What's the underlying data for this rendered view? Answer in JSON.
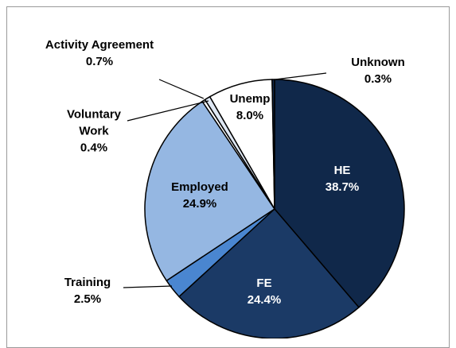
{
  "chart_data": {
    "type": "pie",
    "categories": [
      "HE",
      "FE",
      "Training",
      "Employed",
      "Voluntary Work",
      "Activity Agreement",
      "Unemp",
      "Unknown"
    ],
    "values": [
      38.7,
      24.4,
      2.5,
      24.9,
      0.4,
      0.7,
      8.0,
      0.3
    ],
    "value_labels": [
      "38.7%",
      "24.4%",
      "2.5%",
      "24.9%",
      "0.4%",
      "0.7%",
      "8.0%",
      "0.3%"
    ],
    "colors": [
      "#10284a",
      "#1b3a66",
      "#4a86d0",
      "#95b7e2",
      "#ffffff",
      "#dfe8f4",
      "#ffffff",
      "#10284a"
    ]
  }
}
